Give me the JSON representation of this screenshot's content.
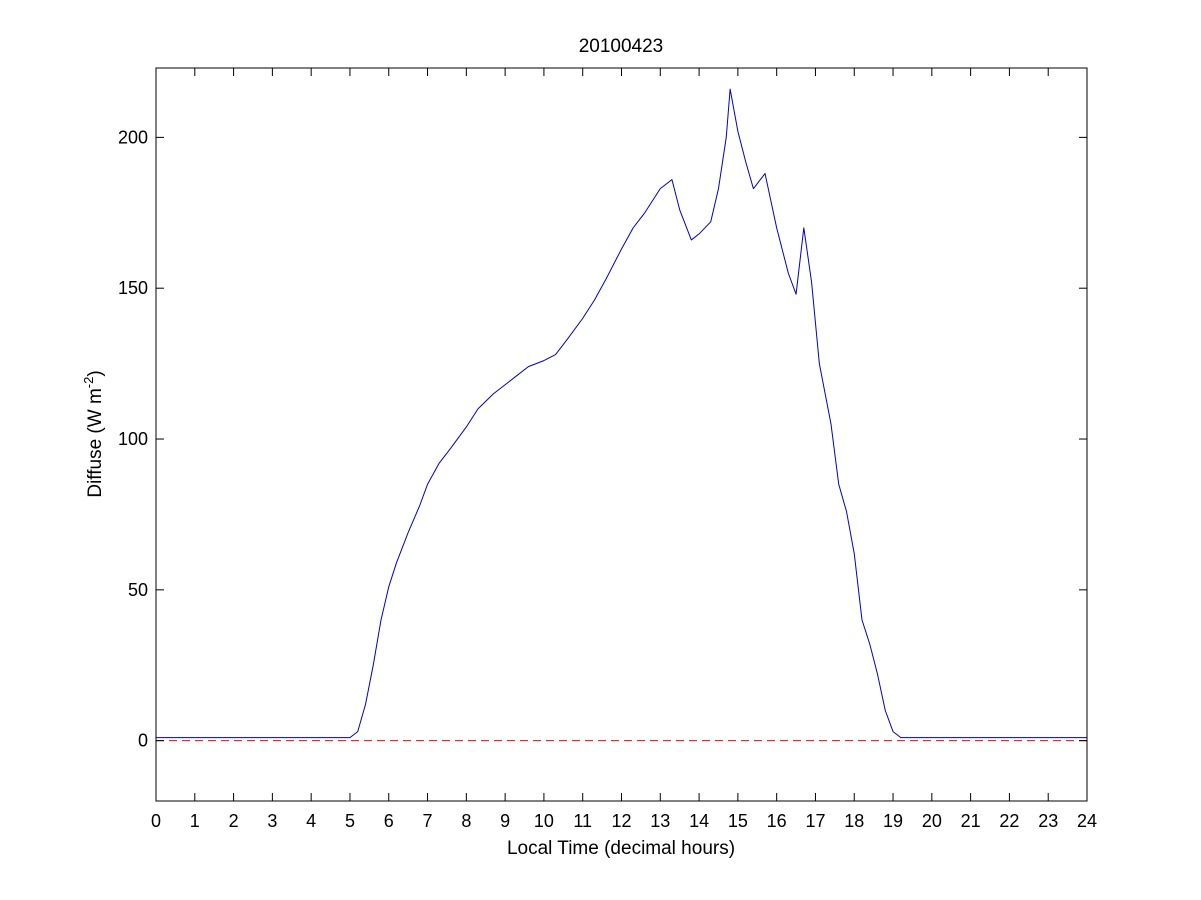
{
  "chart_data": {
    "type": "line",
    "title": "20100423",
    "xlabel": "Local Time (decimal hours)",
    "ylabel": {
      "main": "Diffuse (W m",
      "superscript": "-2",
      "close": ")"
    },
    "xlim": [
      0,
      24
    ],
    "ylim": [
      -20,
      223
    ],
    "xticks": [
      0,
      1,
      2,
      3,
      4,
      5,
      6,
      7,
      8,
      9,
      10,
      11,
      12,
      13,
      14,
      15,
      16,
      17,
      18,
      19,
      20,
      21,
      22,
      23,
      24
    ],
    "yticks": [
      0,
      50,
      100,
      150,
      200
    ],
    "grid": false,
    "series": [
      {
        "color": "#0000cc",
        "style": "solid",
        "x": [
          0,
          1,
          2,
          3,
          4,
          5,
          5.2,
          5.4,
          5.6,
          5.8,
          6.0,
          6.2,
          6.5,
          6.8,
          7.0,
          7.3,
          7.6,
          8.0,
          8.3,
          8.7,
          9.0,
          9.3,
          9.6,
          10.0,
          10.3,
          10.6,
          11.0,
          11.3,
          11.6,
          12.0,
          12.3,
          12.6,
          13.0,
          13.3,
          13.5,
          13.8,
          14.0,
          14.3,
          14.5,
          14.7,
          14.8,
          15.0,
          15.2,
          15.4,
          15.7,
          16.0,
          16.3,
          16.5,
          16.7,
          16.9,
          17.1,
          17.4,
          17.6,
          17.8,
          18.0,
          18.2,
          18.4,
          18.6,
          18.8,
          19.0,
          19.2,
          20,
          21,
          22,
          23,
          24
        ],
        "y": [
          1,
          1,
          1,
          1,
          1,
          1,
          3,
          12,
          25,
          40,
          51,
          59,
          69,
          78,
          85,
          92,
          97,
          104,
          110,
          115,
          118,
          121,
          124,
          126,
          128,
          133,
          140,
          146,
          153,
          163,
          170,
          175,
          183,
          186,
          176,
          166,
          168,
          172,
          183,
          200,
          216,
          202,
          192,
          183,
          188,
          170,
          155,
          148,
          170,
          152,
          125,
          105,
          85,
          76,
          62,
          40,
          32,
          22,
          10,
          3,
          1,
          1,
          1,
          1,
          1,
          1
        ]
      },
      {
        "color": "#ff0000",
        "style": "dashed",
        "x": [
          0,
          24
        ],
        "y": [
          0,
          0
        ]
      }
    ]
  }
}
